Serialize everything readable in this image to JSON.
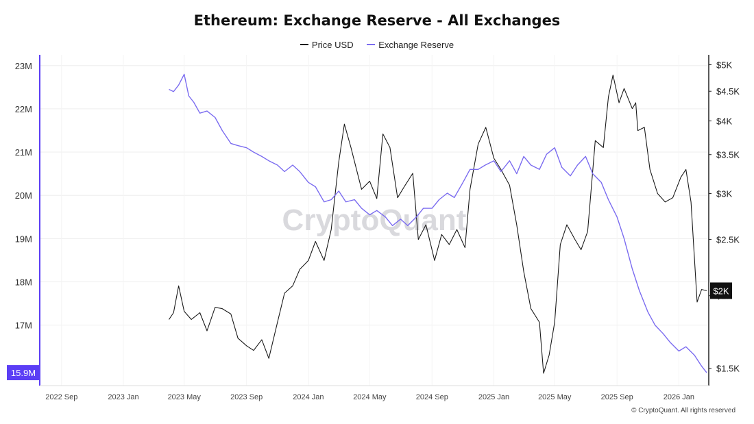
{
  "chart_data": {
    "type": "line",
    "title": "Ethereum: Exchange Reserve - All Exchanges",
    "watermark": "CryptoQuant",
    "footer": "© CryptoQuant. All rights reserved",
    "legend_placement": "top-center",
    "grid": true,
    "x_ticks": [
      "2022 Sep",
      "2023 Jan",
      "2023 May",
      "2023 Sep",
      "2024 Jan",
      "2024 May",
      "2024 Sep",
      "2025 Jan",
      "2025 May",
      "2025 Sep",
      "2026 Jan"
    ],
    "left_axis": {
      "ticks": [
        "23M",
        "22M",
        "21M",
        "20M",
        "19M",
        "18M",
        "17M"
      ],
      "values": [
        23,
        22,
        21,
        20,
        19,
        18,
        17
      ],
      "ylim": [
        15.6,
        23.25
      ],
      "unit": "M",
      "current_value_label": "15.9M",
      "current_value": 15.9
    },
    "right_axis": {
      "ticks": [
        "$5K",
        "$4.5K",
        "$4K",
        "$3.5K",
        "$3K",
        "$2.5K",
        "$2K",
        "$1.5K"
      ],
      "values": [
        5000,
        4500,
        4000,
        3500,
        3000,
        2500,
        2000,
        1500
      ],
      "scale": "log",
      "current_value_label": "$2K",
      "current_value": 2040
    },
    "colors": {
      "price": "#1a1a1a",
      "reserve": "#7b6cf0",
      "badge": "#5b3ef5",
      "grid": "#eeeeee"
    },
    "series": [
      {
        "name": "Price USD",
        "axis": "right",
        "color": "#1a1a1a",
        "x": [
          "2023-04-01",
          "2023-04-10",
          "2023-04-20",
          "2023-05-01",
          "2023-05-15",
          "2023-06-01",
          "2023-06-15",
          "2023-07-01",
          "2023-07-15",
          "2023-08-01",
          "2023-08-15",
          "2023-09-01",
          "2023-09-15",
          "2023-10-01",
          "2023-10-15",
          "2023-11-01",
          "2023-11-15",
          "2023-12-01",
          "2023-12-15",
          "2024-01-01",
          "2024-01-15",
          "2024-02-01",
          "2024-02-15",
          "2024-03-01",
          "2024-03-12",
          "2024-03-25",
          "2024-04-05",
          "2024-04-15",
          "2024-05-01",
          "2024-05-15",
          "2024-05-27",
          "2024-06-10",
          "2024-06-25",
          "2024-07-10",
          "2024-07-25",
          "2024-08-05",
          "2024-08-20",
          "2024-09-06",
          "2024-09-20",
          "2024-10-05",
          "2024-10-20",
          "2024-11-05",
          "2024-11-15",
          "2024-12-01",
          "2024-12-16",
          "2025-01-01",
          "2025-01-15",
          "2025-02-01",
          "2025-02-15",
          "2025-03-01",
          "2025-03-15",
          "2025-04-01",
          "2025-04-09",
          "2025-04-20",
          "2025-05-01",
          "2025-05-12",
          "2025-05-25",
          "2025-06-10",
          "2025-06-22",
          "2025-07-05",
          "2025-07-20",
          "2025-08-05",
          "2025-08-15",
          "2025-08-24",
          "2025-09-05",
          "2025-09-15",
          "2025-10-01",
          "2025-10-08",
          "2025-10-12",
          "2025-10-25",
          "2025-11-05",
          "2025-11-20",
          "2025-12-05",
          "2025-12-20",
          "2026-01-05",
          "2026-01-15",
          "2026-01-25",
          "2026-02-01",
          "2026-02-06",
          "2026-02-15",
          "2026-02-25"
        ],
        "values": [
          1820,
          1870,
          2080,
          1880,
          1820,
          1870,
          1740,
          1910,
          1900,
          1860,
          1690,
          1640,
          1610,
          1680,
          1560,
          1800,
          2020,
          2080,
          2220,
          2300,
          2480,
          2300,
          2600,
          3400,
          3950,
          3600,
          3300,
          3050,
          3150,
          2940,
          3800,
          3600,
          2950,
          3100,
          3250,
          2500,
          2650,
          2300,
          2550,
          2450,
          2600,
          2420,
          3050,
          3650,
          3900,
          3450,
          3300,
          3100,
          2650,
          2200,
          1900,
          1800,
          1470,
          1580,
          1800,
          2450,
          2650,
          2500,
          2400,
          2580,
          3700,
          3600,
          4400,
          4800,
          4300,
          4550,
          4200,
          4300,
          3850,
          3900,
          3300,
          3000,
          2900,
          2950,
          3200,
          3300,
          2900,
          2300,
          1950,
          2050,
          2040
        ]
      },
      {
        "name": "Exchange Reserve",
        "axis": "left",
        "color": "#7b6cf0",
        "x": [
          "2023-04-01",
          "2023-04-10",
          "2023-04-20",
          "2023-05-01",
          "2023-05-10",
          "2023-05-20",
          "2023-06-01",
          "2023-06-15",
          "2023-07-01",
          "2023-07-15",
          "2023-08-01",
          "2023-08-15",
          "2023-09-01",
          "2023-09-15",
          "2023-10-01",
          "2023-10-15",
          "2023-11-01",
          "2023-11-15",
          "2023-12-01",
          "2023-12-15",
          "2024-01-01",
          "2024-01-15",
          "2024-02-01",
          "2024-02-15",
          "2024-03-01",
          "2024-03-15",
          "2024-04-01",
          "2024-04-15",
          "2024-05-01",
          "2024-05-15",
          "2024-06-01",
          "2024-06-15",
          "2024-07-01",
          "2024-07-15",
          "2024-08-01",
          "2024-08-15",
          "2024-09-01",
          "2024-09-15",
          "2024-10-01",
          "2024-10-15",
          "2024-11-01",
          "2024-11-15",
          "2024-12-01",
          "2024-12-15",
          "2025-01-01",
          "2025-01-15",
          "2025-02-01",
          "2025-02-15",
          "2025-03-01",
          "2025-03-15",
          "2025-04-01",
          "2025-04-15",
          "2025-05-01",
          "2025-05-15",
          "2025-06-01",
          "2025-06-15",
          "2025-07-01",
          "2025-07-15",
          "2025-08-01",
          "2025-08-15",
          "2025-09-01",
          "2025-09-15",
          "2025-10-01",
          "2025-10-15",
          "2025-11-01",
          "2025-11-15",
          "2025-12-01",
          "2025-12-15",
          "2026-01-01",
          "2026-01-15",
          "2026-02-01",
          "2026-02-15",
          "2026-02-25"
        ],
        "values": [
          22.45,
          22.4,
          22.55,
          22.8,
          22.3,
          22.15,
          21.9,
          21.95,
          21.8,
          21.5,
          21.2,
          21.15,
          21.1,
          21.0,
          20.9,
          20.8,
          20.7,
          20.55,
          20.7,
          20.55,
          20.3,
          20.2,
          19.85,
          19.9,
          20.1,
          19.85,
          19.9,
          19.7,
          19.55,
          19.65,
          19.5,
          19.3,
          19.45,
          19.3,
          19.5,
          19.7,
          19.7,
          19.9,
          20.05,
          19.95,
          20.3,
          20.6,
          20.6,
          20.7,
          20.8,
          20.55,
          20.8,
          20.5,
          20.9,
          20.7,
          20.6,
          20.95,
          21.1,
          20.65,
          20.45,
          20.7,
          20.9,
          20.5,
          20.3,
          19.9,
          19.5,
          19.0,
          18.3,
          17.8,
          17.3,
          17.0,
          16.8,
          16.6,
          16.4,
          16.5,
          16.3,
          16.05,
          15.9
        ]
      }
    ]
  }
}
